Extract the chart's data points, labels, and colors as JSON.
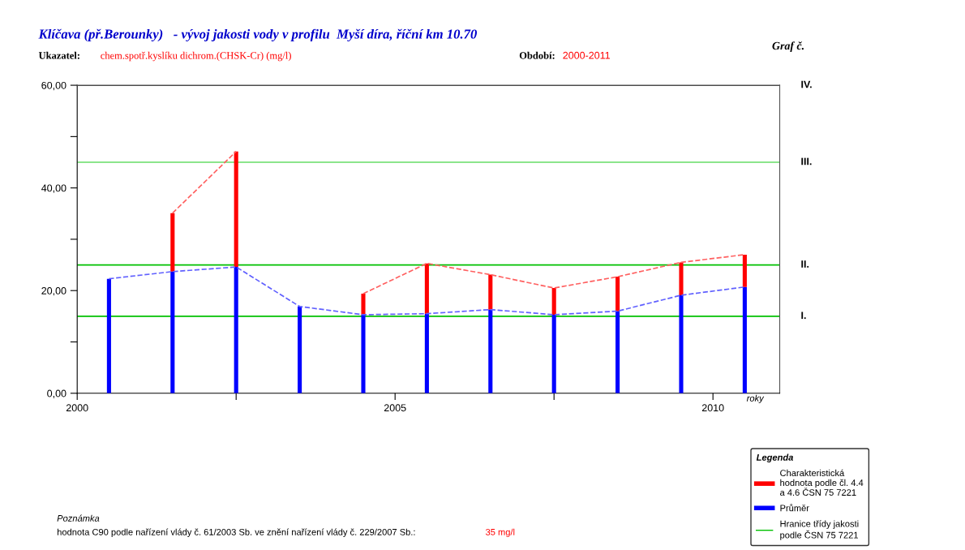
{
  "chart_data": {
    "type": "bar",
    "stacked": true,
    "title": "Klíčava (př.Berounky)   - vývoj jakosti vody v profilu  Myší díra, říční km 10.70",
    "xlabel": "roky",
    "annotations": [
      "Ukazatel:",
      "chem.spotř.kyslíku dichrom.(CHSK-Cr) (mg/l)",
      "Období:",
      "2000-2011",
      "Graf č.",
      "Poznámka",
      "hodnota C90 podle nařízení vlády č. 61/2003 Sb. ve znění nařízení vlády č. 229/2007 Sb.:",
      "35 mg/l",
      "Hranice třídy jakosti podle ČSN 75 7221"
    ],
    "x": [
      2000.5,
      2001.5,
      2002.5,
      2003.5,
      2004.5,
      2005.5,
      2006.5,
      2007.5,
      2008.5,
      2009.5,
      2010.5
    ],
    "series": [
      {
        "name": "Průměr",
        "color": "#0000ff",
        "values": [
          22.3,
          23.7,
          24.6,
          16.9,
          15.3,
          15.5,
          16.3,
          15.3,
          16.0,
          19.1,
          20.7
        ]
      },
      {
        "name": "Charakteristická hodnota podle čl. 4.4 a 4.6 ČSN 75 7221",
        "color": "#ff0000",
        "values": [
          null,
          11.4,
          22.5,
          null,
          4.1,
          9.8,
          6.8,
          5.2,
          6.7,
          6.4,
          6.3
        ]
      },
      {
        "type": "line",
        "line_style": "dashed",
        "color": "#6060ff",
        "values": [
          22.3,
          23.7,
          24.6,
          16.9,
          15.3,
          15.5,
          16.3,
          15.3,
          16.0,
          19.1,
          20.7
        ]
      },
      {
        "type": "line",
        "line_style": "dashed",
        "color": "#ff6060",
        "values": [
          null,
          35.1,
          47.1,
          null,
          19.4,
          25.3,
          23.1,
          20.5,
          22.7,
          25.5,
          27.0
        ]
      }
    ],
    "ref_lines": [
      {
        "axis": "y",
        "value": 15,
        "label": "I.",
        "color": "#00c000"
      },
      {
        "axis": "y",
        "value": 25,
        "label": "II.",
        "color": "#00c000"
      },
      {
        "axis": "y",
        "value": 45,
        "label": "III.",
        "color": "#66dd66"
      },
      {
        "axis": "y",
        "value": 60,
        "label": "IV.",
        "color": "#333333"
      }
    ],
    "xlim": [
      2000,
      2011.05
    ],
    "xticks": [
      2000,
      {
        "value": 2002.5,
        "label": null
      },
      2005,
      {
        "value": 2007.5,
        "label": null
      },
      2010
    ],
    "ylim": [
      0,
      60
    ],
    "yticks": [
      {
        "value": 0,
        "label": "0,00"
      },
      {
        "value": 10,
        "label": null
      },
      {
        "value": 20,
        "label": "20,00"
      },
      {
        "value": 30,
        "label": null
      },
      {
        "value": 40,
        "label": "40,00"
      },
      {
        "value": 50,
        "label": null
      },
      {
        "value": 60,
        "label": "60,00"
      }
    ],
    "legend": "bottom right",
    "legend_title": "Legenda",
    "grid": false
  }
}
